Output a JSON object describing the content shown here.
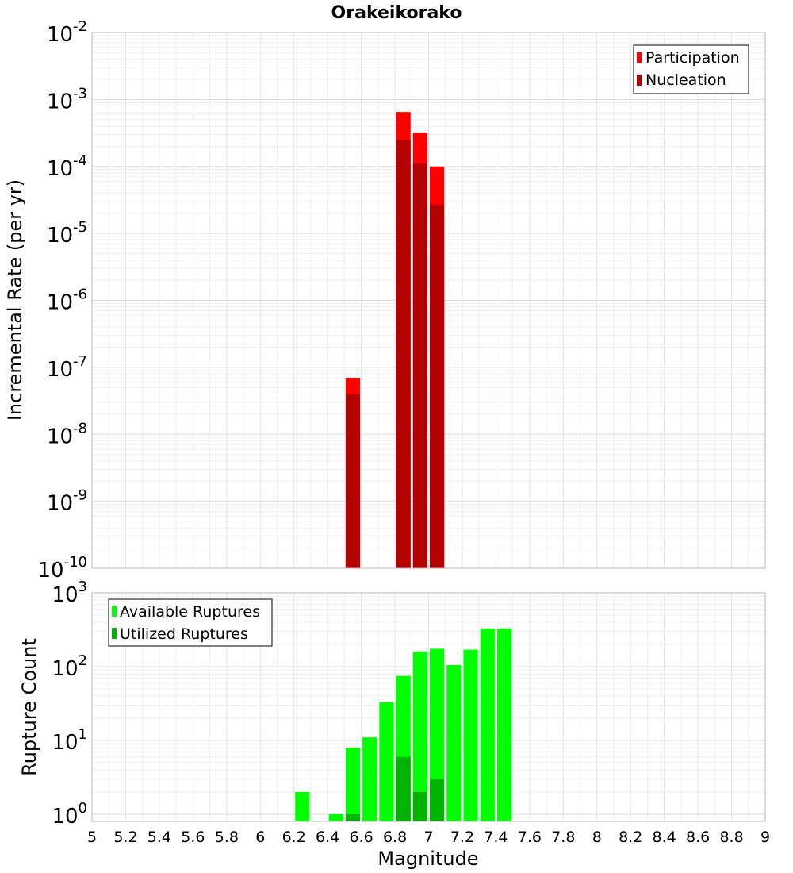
{
  "title": "Orakeikorako",
  "xlabel": "Magnitude",
  "x_ticks": [
    "5",
    "5.2",
    "5.4",
    "5.6",
    "5.8",
    "6",
    "6.2",
    "6.4",
    "6.6",
    "6.8",
    "7",
    "7.2",
    "7.4",
    "7.6",
    "7.8",
    "8",
    "8.2",
    "8.4",
    "8.6",
    "8.8",
    "9"
  ],
  "chart_data": [
    {
      "type": "bar",
      "name": "rate-panel",
      "ylabel": "Incremental Rate (per yr)",
      "y_scale": "log",
      "ylim": [
        1e-10,
        0.01
      ],
      "xlim": [
        5,
        9
      ],
      "bar_width": 0.1,
      "y_ticks": [
        {
          "base": "10",
          "exp": "-10",
          "value": 1e-10
        },
        {
          "base": "10",
          "exp": "-9",
          "value": 1e-09
        },
        {
          "base": "10",
          "exp": "-8",
          "value": 1e-08
        },
        {
          "base": "10",
          "exp": "-7",
          "value": 1e-07
        },
        {
          "base": "10",
          "exp": "-6",
          "value": 1e-06
        },
        {
          "base": "10",
          "exp": "-5",
          "value": 1e-05
        },
        {
          "base": "10",
          "exp": "-4",
          "value": 0.0001
        },
        {
          "base": "10",
          "exp": "-3",
          "value": 0.001
        },
        {
          "base": "10",
          "exp": "-2",
          "value": 0.01
        }
      ],
      "legend_position": "top-right",
      "series": [
        {
          "name": "Participation",
          "color": "#ff0000",
          "x": [
            6.55,
            6.85,
            6.95,
            7.05
          ],
          "values": [
            7e-08,
            0.00065,
            0.00032,
            0.0001
          ]
        },
        {
          "name": "Nucleation",
          "color": "#b30000",
          "x": [
            6.55,
            6.85,
            6.95,
            7.05
          ],
          "values": [
            4e-08,
            0.00025,
            0.00011,
            2.7e-05
          ]
        }
      ]
    },
    {
      "type": "bar",
      "name": "count-panel",
      "ylabel": "Rupture Count",
      "y_scale": "log",
      "ylim": [
        0.8,
        1000
      ],
      "xlim": [
        5,
        9
      ],
      "bar_width": 0.1,
      "y_ticks": [
        {
          "base": "10",
          "exp": "0",
          "value": 1
        },
        {
          "base": "10",
          "exp": "1",
          "value": 10
        },
        {
          "base": "10",
          "exp": "2",
          "value": 100
        },
        {
          "base": "10",
          "exp": "3",
          "value": 1000
        }
      ],
      "legend_position": "top-left",
      "series": [
        {
          "name": "Available Ruptures",
          "color": "#00ff00",
          "x": [
            6.25,
            6.45,
            6.55,
            6.65,
            6.75,
            6.85,
            6.95,
            7.05,
            7.15,
            7.25,
            7.35,
            7.45
          ],
          "values": [
            2,
            1,
            8,
            11,
            33,
            75,
            160,
            175,
            105,
            170,
            330,
            330
          ]
        },
        {
          "name": "Utilized Ruptures",
          "color": "#00b300",
          "x": [
            6.55,
            6.85,
            6.95,
            7.05
          ],
          "values": [
            1,
            6,
            2,
            3
          ]
        }
      ]
    }
  ]
}
